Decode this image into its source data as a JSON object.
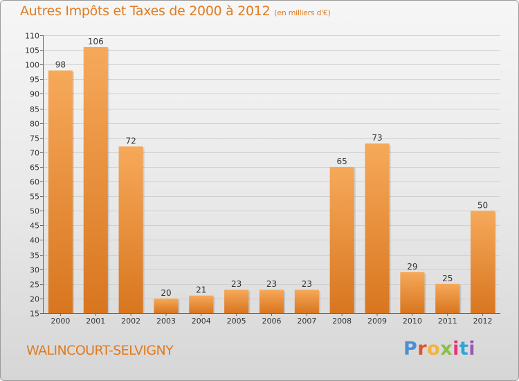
{
  "title": {
    "main": "Autres Impôts et Taxes de 2000 à 2012",
    "unit": "(en milliers d'€)"
  },
  "commune": "WALINCOURT-SELVIGNY",
  "logo": {
    "p": "P",
    "r": "r",
    "o": "o",
    "x": "x",
    "i1": "i",
    "t": "t",
    "i2": "i"
  },
  "colors": {
    "accent": "#e07b20",
    "bar_top": "#f6a95a",
    "bar_bottom": "#d8761f"
  },
  "chart_data": {
    "type": "bar",
    "categories": [
      "2000",
      "2001",
      "2002",
      "2003",
      "2004",
      "2005",
      "2006",
      "2007",
      "2008",
      "2009",
      "2010",
      "2011",
      "2012"
    ],
    "values": [
      98,
      106,
      72,
      20,
      21,
      23,
      23,
      23,
      65,
      73,
      29,
      25,
      50
    ],
    "ylim": [
      15,
      110
    ],
    "yticks": [
      15,
      20,
      25,
      30,
      35,
      40,
      45,
      50,
      55,
      60,
      65,
      70,
      75,
      80,
      85,
      90,
      95,
      100,
      105,
      110
    ],
    "grid": true
  }
}
